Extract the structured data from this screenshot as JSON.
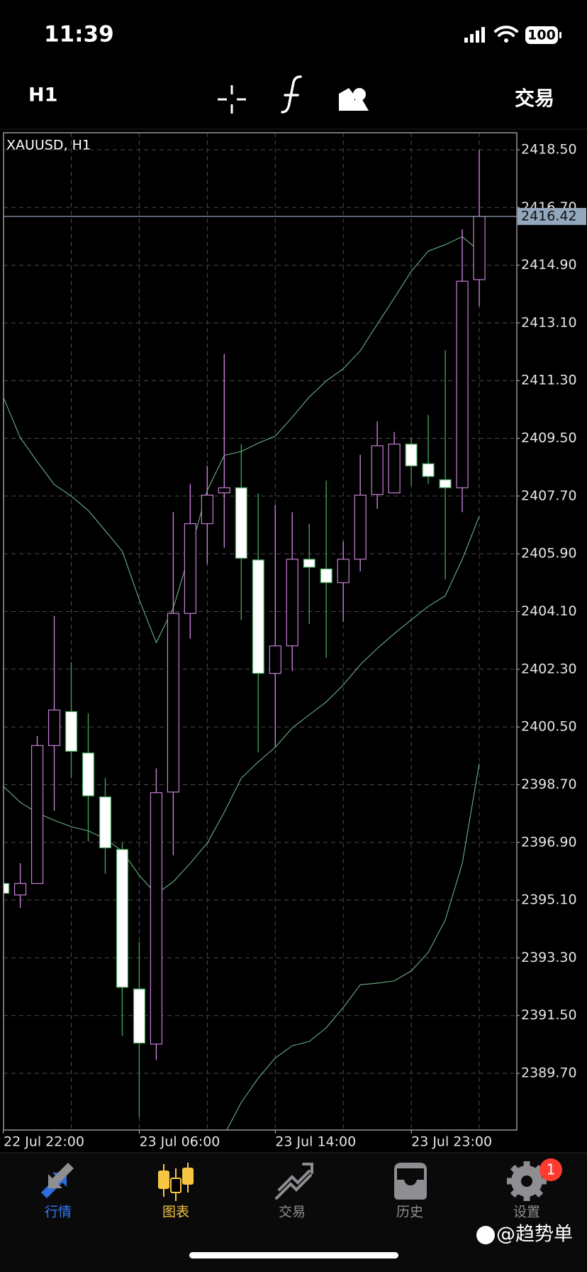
{
  "status_bar": {
    "time": "11:39",
    "battery": "100"
  },
  "toolbar": {
    "timeframe": "H1",
    "trade": "交易"
  },
  "chart_data": {
    "type": "candlestick",
    "title": "XAUUSD, H1",
    "categories": [
      "22 Jul 22:00",
      null,
      null,
      null,
      null,
      null,
      null,
      null,
      "23 Jul 06:00",
      null,
      null,
      null,
      null,
      null,
      null,
      null,
      "23 Jul 14:00",
      null,
      null,
      null,
      null,
      null,
      null,
      null,
      "23 Jul 23:00",
      null,
      null,
      null,
      null
    ],
    "open": [
      2395.62,
      2395.26,
      2395.62,
      2399.92,
      2400.98,
      2399.69,
      2398.32,
      2396.68,
      2392.33,
      2390.61,
      2398.47,
      2404.04,
      2406.84,
      2407.8,
      2407.96,
      2405.71,
      2402.17,
      2403.03,
      2405.73,
      2405.43,
      2405.0,
      2405.73,
      2407.75,
      2407.8,
      2409.32,
      2408.71,
      2408.21,
      2407.96,
      2414.45
    ],
    "high": [
      2395.7,
      2396.25,
      2400.22,
      2403.96,
      2402.52,
      2400.93,
      2398.9,
      2396.88,
      2393.8,
      2399.21,
      2407.2,
      2408.08,
      2408.64,
      2412.13,
      2409.32,
      2407.78,
      2407.43,
      2407.2,
      2406.84,
      2408.18,
      2406.29,
      2408.99,
      2410.03,
      2409.7,
      2409.52,
      2410.23,
      2412.25,
      2416.02,
      2418.5
    ],
    "low": [
      2395.2,
      2394.86,
      2395.62,
      2397.89,
      2398.9,
      2396.93,
      2395.92,
      2390.86,
      2388.34,
      2390.11,
      2396.5,
      2403.25,
      2405.58,
      2406.09,
      2403.83,
      2399.71,
      2399.87,
      2402.24,
      2403.71,
      2402.65,
      2403.78,
      2405.35,
      2407.3,
      2407.78,
      2408.01,
      2408.08,
      2405.1,
      2407.2,
      2413.62
    ],
    "close": [
      2395.31,
      2395.62,
      2399.92,
      2401.03,
      2399.74,
      2398.35,
      2396.73,
      2392.38,
      2390.64,
      2398.45,
      2404.04,
      2406.84,
      2407.73,
      2407.96,
      2405.76,
      2402.17,
      2403.03,
      2405.73,
      2405.48,
      2405.0,
      2405.73,
      2407.73,
      2409.27,
      2409.32,
      2408.64,
      2408.31,
      2407.96,
      2414.4,
      2416.42
    ],
    "up_color": "#c77fd6",
    "down_color": "#ffffff",
    "down_wick_color": "#3f9d55",
    "band_color": "#7ccf9a",
    "bands": [
      {
        "values": [
          2410.79,
          2409.52,
          2408.77,
          2408.06,
          2407.7,
          2407.25,
          2406.62,
          2405.98,
          2404.47,
          2403.13,
          2404.21,
          2405.98,
          2407.88,
          2408.97,
          2409.09,
          2409.35,
          2409.57,
          2410.16,
          2410.79,
          2411.29,
          2411.67,
          2412.23,
          2413.06,
          2413.87,
          2414.71,
          2415.34,
          2415.54,
          2415.79,
          2415.34
        ]
      },
      {
        "values": [
          2398.65,
          2398.15,
          2397.82,
          2397.59,
          2397.39,
          2397.26,
          2397.01,
          2396.63,
          2395.87,
          2395.29,
          2395.67,
          2396.25,
          2396.88,
          2397.84,
          2398.9,
          2399.41,
          2399.87,
          2400.47,
          2400.88,
          2401.28,
          2401.81,
          2402.44,
          2402.95,
          2403.41,
          2403.84,
          2404.26,
          2404.59,
          2405.73,
          2407.07
        ]
      },
      {
        "values": [
          null,
          null,
          null,
          null,
          null,
          null,
          null,
          null,
          null,
          null,
          null,
          null,
          null,
          2387.78,
          2388.79,
          2389.55,
          2390.18,
          2390.56,
          2390.69,
          2391.12,
          2391.75,
          2392.46,
          2392.51,
          2392.58,
          2392.89,
          2393.47,
          2394.48,
          2396.25,
          2399.36
        ]
      }
    ],
    "price_line": 2416.42,
    "ylim": [
      2387.93,
      2419.03
    ],
    "yticks": [
      {
        "value": 2389.7,
        "label": "2389.70"
      },
      {
        "value": 2391.5,
        "label": "2391.50"
      },
      {
        "value": 2393.3,
        "label": "2393.30"
      },
      {
        "value": 2395.1,
        "label": "2395.10"
      },
      {
        "value": 2396.9,
        "label": "2396.90"
      },
      {
        "value": 2398.7,
        "label": "2398.70"
      },
      {
        "value": 2400.5,
        "label": "2400.50"
      },
      {
        "value": 2402.3,
        "label": "2402.30"
      },
      {
        "value": 2404.1,
        "label": "2404.10"
      },
      {
        "value": 2405.9,
        "label": "2405.90"
      },
      {
        "value": 2407.7,
        "label": "2407.70"
      },
      {
        "value": 2409.5,
        "label": "2409.50"
      },
      {
        "value": 2411.3,
        "label": "2411.30"
      },
      {
        "value": 2413.1,
        "label": "2413.10"
      },
      {
        "value": 2414.9,
        "label": "2414.90"
      },
      {
        "value": 2416.7,
        "label": "2416.70"
      },
      {
        "value": 2418.5,
        "label": "2418.50"
      }
    ],
    "grid": true
  },
  "tab_bar": {
    "tabs": [
      {
        "label": "行情"
      },
      {
        "label": "图表"
      },
      {
        "label": "交易"
      },
      {
        "label": "历史"
      },
      {
        "label": "设置"
      }
    ],
    "badge": 1
  },
  "watermark": "@趋势单"
}
